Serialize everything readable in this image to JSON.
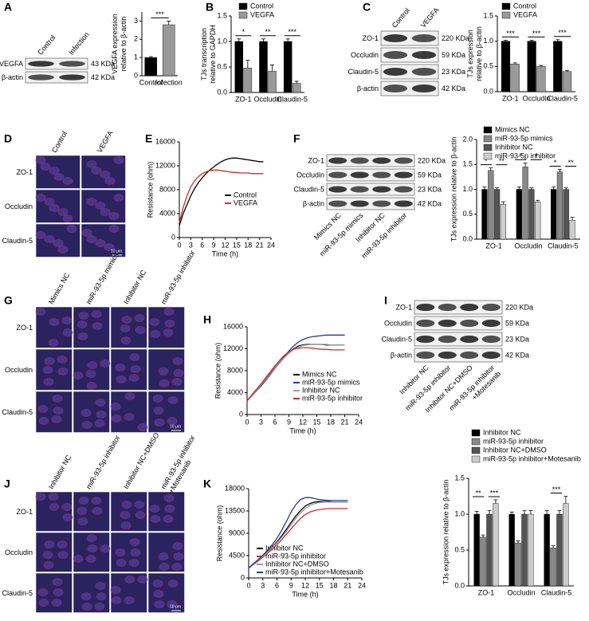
{
  "panels": [
    "A",
    "B",
    "C",
    "D",
    "E",
    "F",
    "G",
    "H",
    "I",
    "J",
    "K"
  ],
  "chart_data": [
    {
      "type": "bar",
      "ylabel": [
        "VEGFA expression",
        "relative to β-actin"
      ],
      "categories": [
        "Control",
        "Infection"
      ],
      "values": [
        1.0,
        2.8
      ],
      "errors": [
        0.05,
        0.2
      ],
      "colors": [
        "#000000",
        "#999999"
      ],
      "ylim": [
        0,
        3.5
      ],
      "yticks": [
        0,
        1,
        2,
        3
      ],
      "annotation": "***"
    },
    {
      "type": "bar",
      "ylabel": [
        "TJs transcription",
        "relative to GAPDH"
      ],
      "categories": [
        "ZO-1",
        "Occludin",
        "Claudin-5"
      ],
      "series": [
        {
          "name": "Control",
          "color": "#000000",
          "values": [
            1.0,
            1.0,
            1.0
          ],
          "errors": [
            0.05,
            0.05,
            0.05
          ]
        },
        {
          "name": "VEGFA",
          "color": "#999999",
          "values": [
            0.48,
            0.42,
            0.18
          ],
          "errors": [
            0.15,
            0.12,
            0.04
          ]
        }
      ],
      "ylim": [
        0,
        1.5
      ],
      "yticks": [
        {
          "value": 0,
          "label": "0.0"
        },
        0.5,
        {
          "value": 1,
          "label": "1.0"
        },
        1.5
      ],
      "annotations": [
        [
          "*"
        ],
        [
          "**"
        ],
        [
          "***"
        ]
      ]
    },
    {
      "type": "bar",
      "ylabel": [
        "TJs expression",
        "relative to β-actin"
      ],
      "categories": [
        "ZO-1",
        "Occludin",
        "Claudin-5"
      ],
      "series": [
        {
          "name": "Control",
          "color": "#000000",
          "values": [
            1.0,
            1.0,
            1.0
          ],
          "errors": [
            0.02,
            0.02,
            0.03
          ]
        },
        {
          "name": "VEGFA",
          "color": "#999999",
          "values": [
            0.55,
            0.5,
            0.4
          ],
          "errors": [
            0.02,
            0.02,
            0.02
          ]
        }
      ],
      "ylim": [
        0,
        1.5
      ],
      "yticks": [
        {
          "value": 0,
          "label": "0.0"
        },
        0.5,
        {
          "value": 1,
          "label": "1.0"
        },
        1.5
      ],
      "annotations": [
        [
          "***"
        ],
        [
          "***"
        ],
        [
          "***"
        ]
      ]
    },
    {
      "type": "line",
      "ylabel": "Resistance (ohm)",
      "xlabel": "Time (h)",
      "x": [
        0,
        1,
        2,
        3,
        4,
        5,
        6,
        7,
        8,
        9,
        10,
        11,
        12,
        13,
        14,
        15,
        16,
        17,
        18,
        19,
        20,
        21,
        22
      ],
      "series": [
        {
          "name": "Control",
          "color": "#000000",
          "values": [
            2000,
            4000,
            5500,
            7000,
            8200,
            9200,
            10000,
            10700,
            11300,
            11800,
            12300,
            12700,
            13000,
            13200,
            13300,
            13300,
            13200,
            13100,
            13000,
            12900,
            12800,
            12700,
            12700
          ]
        },
        {
          "name": "VEGFA",
          "color": "#d62728",
          "values": [
            2500,
            5000,
            7000,
            8500,
            9500,
            10200,
            10700,
            11000,
            11200,
            11300,
            11300,
            11200,
            11100,
            11000,
            10900,
            10900,
            10800,
            10800,
            10800,
            10700,
            10700,
            10700,
            10700
          ]
        }
      ],
      "xlim": [
        0,
        24
      ],
      "xticks": [
        0,
        3,
        6,
        9,
        12,
        15,
        18,
        21,
        24
      ],
      "ylim": [
        0,
        16000
      ],
      "yticks": [
        0,
        4000,
        8000,
        12000,
        16000
      ]
    },
    {
      "type": "bar",
      "ylabel": "TJs expression relative to β-actin",
      "categories": [
        "ZO-1",
        "Occludin",
        "Claudin-5"
      ],
      "series": [
        {
          "name": "Mimics NC",
          "color": "#000000",
          "values": [
            1.0,
            1.0,
            1.0
          ],
          "errors": [
            0.05,
            0.05,
            0.05
          ]
        },
        {
          "name": "miR-93-5p mimics",
          "color": "#888888",
          "values": [
            1.38,
            1.45,
            1.35
          ],
          "errors": [
            0.05,
            0.08,
            0.05
          ]
        },
        {
          "name": "Inhibitor NC",
          "color": "#555555",
          "values": [
            1.0,
            1.0,
            1.0
          ],
          "errors": [
            0.03,
            0.03,
            0.03
          ]
        },
        {
          "name": "miR-93-5p inhibitor",
          "color": "#cccccc",
          "values": [
            0.7,
            0.75,
            0.38
          ],
          "errors": [
            0.05,
            0.03,
            0.06
          ]
        }
      ],
      "ylim": [
        0,
        2.0
      ],
      "yticks": [
        {
          "value": 0,
          "label": "0.0"
        },
        0.5,
        {
          "value": 1,
          "label": "1.0"
        },
        1.5,
        {
          "value": 2,
          "label": "2.0"
        }
      ],
      "annotations": [
        [
          "*",
          "**"
        ],
        [
          "*",
          "*"
        ],
        [
          "*",
          "**"
        ]
      ]
    },
    {
      "type": "line",
      "ylabel": "Resistance (ohm)",
      "xlabel": "Time (h)",
      "x": [
        0,
        1,
        2,
        3,
        4,
        5,
        6,
        7,
        8,
        9,
        10,
        11,
        12,
        13,
        14,
        15,
        16,
        17,
        18,
        19,
        20,
        21
      ],
      "series": [
        {
          "name": "Mimics NC",
          "color": "#000000",
          "values": [
            2500,
            3500,
            4500,
            5500,
            6500,
            7500,
            8500,
            9500,
            10500,
            11300,
            12000,
            12500,
            12700,
            12800,
            12800,
            12800,
            12800,
            12700,
            12700,
            12700,
            12700,
            12700
          ]
        },
        {
          "name": "miR-93-5p mimics",
          "color": "#1f3a93",
          "values": [
            2500,
            3400,
            4300,
            5200,
            6200,
            7300,
            8400,
            9500,
            10600,
            11600,
            12500,
            13200,
            13700,
            14000,
            14200,
            14300,
            14400,
            14500,
            14500,
            14500,
            14500,
            14500
          ]
        },
        {
          "name": "Inhibitor NC",
          "color": "#999999",
          "values": [
            2500,
            3500,
            4400,
            5400,
            6400,
            7400,
            8400,
            9400,
            10400,
            11200,
            11900,
            12300,
            12600,
            12700,
            12800,
            12800,
            12800,
            12800,
            12700,
            12700,
            12700,
            12700
          ]
        },
        {
          "name": "miR-93-5p inhibitor",
          "color": "#d62728",
          "values": [
            2500,
            3600,
            4600,
            5600,
            6700,
            7800,
            8900,
            9900,
            10800,
            11400,
            11900,
            12100,
            12200,
            12200,
            12100,
            12000,
            11900,
            11900,
            11800,
            11800,
            11800,
            11800
          ]
        }
      ],
      "xlim": [
        0,
        24
      ],
      "xticks": [
        0,
        3,
        6,
        9,
        12,
        15,
        18,
        21,
        24
      ],
      "ylim": [
        0,
        16000
      ],
      "yticks": [
        0,
        4000,
        8000,
        12000,
        16000
      ]
    },
    {
      "type": "bar",
      "ylabel": "TJs expression relative to β-actin",
      "categories": [
        "ZO-1",
        "Occludin",
        "Claudin-5"
      ],
      "series": [
        {
          "name": "Inhibitor NC",
          "color": "#000000",
          "values": [
            1.0,
            1.0,
            1.0
          ],
          "errors": [
            0.04,
            0.03,
            0.05
          ]
        },
        {
          "name": "miR-93-5p inhibitor",
          "color": "#888888",
          "values": [
            0.68,
            0.6,
            0.53
          ],
          "errors": [
            0.03,
            0.03,
            0.03
          ]
        },
        {
          "name": "Inhibitor NC+DMSO",
          "color": "#555555",
          "values": [
            1.0,
            1.0,
            1.0
          ],
          "errors": [
            0.05,
            0.05,
            0.05
          ]
        },
        {
          "name": "miR-93-5p inhibitor+Motesanib",
          "color": "#cccccc",
          "values": [
            1.15,
            1.0,
            1.15
          ],
          "errors": [
            0.05,
            0.05,
            0.1
          ]
        }
      ],
      "ylim": [
        0,
        1.5
      ],
      "yticks": [
        {
          "value": 0,
          "label": "0.0"
        },
        0.5,
        {
          "value": 1,
          "label": "1.0"
        },
        1.5
      ],
      "annotations": [
        [
          "**",
          "***"
        ],
        [],
        [
          "***"
        ]
      ]
    },
    {
      "type": "line",
      "ylabel": "Resistance (ohm)",
      "xlabel": "Time (h)",
      "x": [
        0,
        1,
        2,
        3,
        4,
        5,
        6,
        7,
        8,
        9,
        10,
        11,
        12,
        13,
        14,
        15,
        16,
        17,
        18,
        19,
        20,
        21
      ],
      "series": [
        {
          "name": "Inhibitor NC",
          "color": "#000000",
          "values": [
            2000,
            2800,
            3600,
            4400,
            5300,
            6200,
            7300,
            8500,
            9800,
            11200,
            12500,
            13600,
            14500,
            15000,
            15300,
            15400,
            15400,
            15400,
            15300,
            15300,
            15300,
            15300
          ]
        },
        {
          "name": "miR-93-5p inhibitor",
          "color": "#d62728",
          "values": [
            2000,
            2700,
            3400,
            4200,
            5000,
            5800,
            6700,
            7700,
            8800,
            9900,
            11000,
            12000,
            12800,
            13300,
            13600,
            13800,
            13900,
            14000,
            14000,
            14000,
            14000,
            14000
          ]
        },
        {
          "name": "Inhibitor NC+DMSO",
          "color": "#999999",
          "values": [
            2000,
            2800,
            3600,
            4400,
            5200,
            6100,
            7100,
            8200,
            9400,
            10700,
            12000,
            13100,
            14000,
            14600,
            15000,
            15200,
            15300,
            15300,
            15300,
            15300,
            15300,
            15300
          ]
        },
        {
          "name": "miR-93-5p inhibitor+Motesanib",
          "color": "#1f3a93",
          "values": [
            2000,
            2900,
            3700,
            4600,
            5600,
            6700,
            8000,
            9600,
            11400,
            13300,
            14800,
            15800,
            16200,
            16200,
            16000,
            15800,
            15700,
            15600,
            15600,
            15600,
            15600,
            15600
          ]
        }
      ],
      "xlim": [
        0,
        24
      ],
      "xticks": [
        0,
        3,
        6,
        9,
        12,
        15,
        18,
        21,
        24
      ],
      "ylim": [
        0,
        18000
      ],
      "yticks": [
        0,
        4500,
        9000,
        13500,
        18000
      ]
    }
  ],
  "blots": [
    {
      "lanes": [
        "Control",
        "Infection"
      ],
      "rows": [
        {
          "protein": "VEGFA",
          "size": "43 KDa"
        },
        {
          "protein": "β-actin",
          "size": "42 KDa"
        }
      ]
    },
    {
      "lanes": [
        "Control",
        "VEGFA"
      ],
      "rows": [
        {
          "protein": "ZO-1",
          "size": "220 KDa"
        },
        {
          "protein": "Occludin",
          "size": "59 KDa"
        },
        {
          "protein": "Claudin-5",
          "size": "23 KDa"
        },
        {
          "protein": "β-actin",
          "size": "42 KDa"
        }
      ]
    },
    {
      "lanes": [
        "Mimics NC",
        "miR-93-5p mimics",
        "Inhibitor NC",
        "miR-93-5p inhibitor"
      ],
      "rows": [
        {
          "protein": "ZO-1",
          "size": "220 KDa"
        },
        {
          "protein": "Occludin",
          "size": "59 KDa"
        },
        {
          "protein": "Claudin-5",
          "size": "23 KDa"
        },
        {
          "protein": "β-actin",
          "size": "42 KDa"
        }
      ]
    },
    {
      "lanes": [
        "Inhibitor NC",
        "miR-93-5p inhibitor",
        "Inhibitor NC+DMSO",
        [
          "miR-93-5p inhibitor",
          "+Motesanib"
        ]
      ],
      "rows": [
        {
          "protein": "ZO-1",
          "size": "220 KDa"
        },
        {
          "protein": "Occludin",
          "size": "59 KDa"
        },
        {
          "protein": "Claudin-5",
          "size": "23 KDa"
        },
        {
          "protein": "β-actin",
          "size": "42 KDa"
        }
      ]
    }
  ],
  "images": [
    {
      "columns": [
        "Control",
        "VEGFA"
      ],
      "rows": [
        "ZO-1",
        "Occludin",
        "Claudin-5"
      ],
      "scale": "10 μm"
    },
    {
      "columns": [
        "Mimics NC",
        "miR-93-5p mimics",
        "Inhibitor NC",
        "miR-93-5p inhibitor"
      ],
      "rows": [
        "ZO-1",
        "Occludin",
        "Claudin-5"
      ],
      "scale": "10 μm"
    },
    {
      "columns": [
        "Inhibitor NC",
        "miR-93-5p inhibitor",
        "Inhibitor NC+DMSO",
        [
          "miR-93-5p inhibitor",
          "+Motesanib"
        ]
      ],
      "rows": [
        "ZO-1",
        "Occludin",
        "Claudin-5"
      ],
      "scale": "10 μm"
    }
  ]
}
